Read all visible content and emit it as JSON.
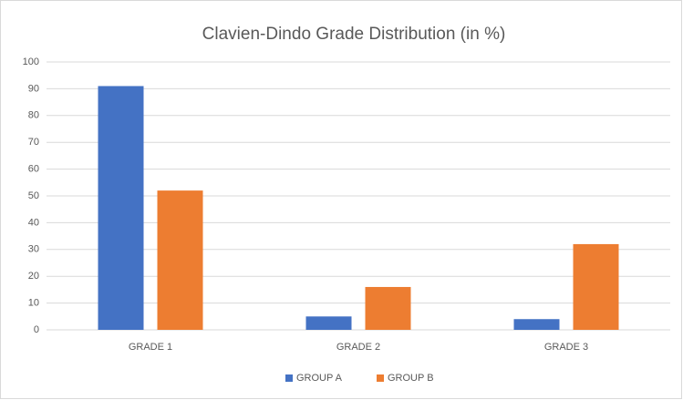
{
  "chart_data": {
    "type": "bar",
    "title": "Clavien-Dindo Grade Distribution (in %)",
    "categories": [
      "GRADE 1",
      "GRADE 2",
      "GRADE 3"
    ],
    "series": [
      {
        "name": "GROUP A",
        "color": "#4472c4",
        "values": [
          91,
          5,
          4
        ]
      },
      {
        "name": "GROUP B",
        "color": "#ed7d31",
        "values": [
          52,
          16,
          32
        ]
      }
    ],
    "ylim": [
      0,
      100
    ],
    "yticks": [
      0,
      10,
      20,
      30,
      40,
      50,
      60,
      70,
      80,
      90,
      100
    ],
    "grid": true,
    "legend": "bottom"
  }
}
